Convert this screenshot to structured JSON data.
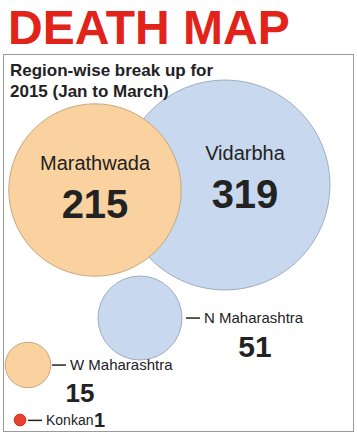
{
  "chart_data": {
    "type": "bubble",
    "title": "DEATH MAP",
    "subtitle": "Region-wise break up for 2015 (Jan to March)",
    "categories": [
      "Vidarbha",
      "Marathwada",
      "N Maharashtra",
      "W Maharashtra",
      "Konkan"
    ],
    "values": [
      319,
      215,
      51,
      15,
      1
    ],
    "colors": [
      "#c8d8ee",
      "#f9d2a0",
      "#c8d8ee",
      "#f9d2a0",
      "#e8432a"
    ],
    "data_labels": true
  }
}
